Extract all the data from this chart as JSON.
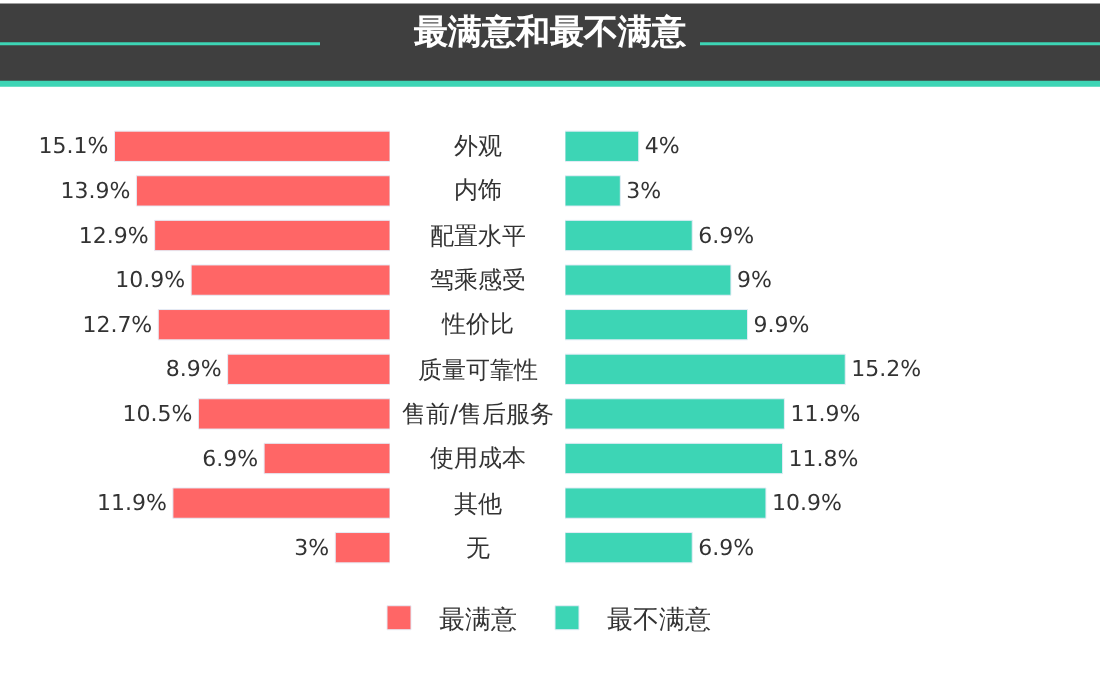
{
  "chart_data": [
    {
      "type": "bar",
      "orientation": "horizontal",
      "title": "最满意和最不满意",
      "categories": [
        "外观",
        "内饰",
        "配置水平",
        "驾乘感受",
        "性价比",
        "质量可靠性",
        "售前/售后服务",
        "使用成本",
        "其他",
        "无"
      ],
      "series": [
        {
          "name": "最满意",
          "color": "#ff6666",
          "values": [
            15.1,
            13.9,
            12.9,
            10.9,
            12.7,
            8.9,
            10.5,
            6.9,
            11.9,
            3
          ],
          "value_labels": [
            "15.1%",
            "13.9%",
            "12.9%",
            "10.9%",
            "12.7%",
            "8.9%",
            "10.5%",
            "6.9%",
            "11.9%",
            "3%"
          ]
        }
      ],
      "tick_labels": "y",
      "legend": "bottom"
    },
    {
      "type": "bar",
      "orientation": "horizontal",
      "categories": [
        null,
        null,
        null,
        null,
        null,
        null,
        null,
        null,
        null,
        null
      ],
      "series": [
        {
          "name": "最不满意",
          "color": "#3dd5b5",
          "values": [
            4,
            3,
            6.9,
            9,
            9.9,
            15.2,
            11.9,
            11.8,
            10.9,
            6.9
          ],
          "value_labels": [
            "4%",
            "3%",
            "6.9%",
            "9%",
            "9.9%",
            "15.2%",
            "11.9%",
            "11.8%",
            "10.9%",
            "6.9%"
          ]
        }
      ],
      "tick_labels": false,
      "legend": "bottom"
    }
  ]
}
